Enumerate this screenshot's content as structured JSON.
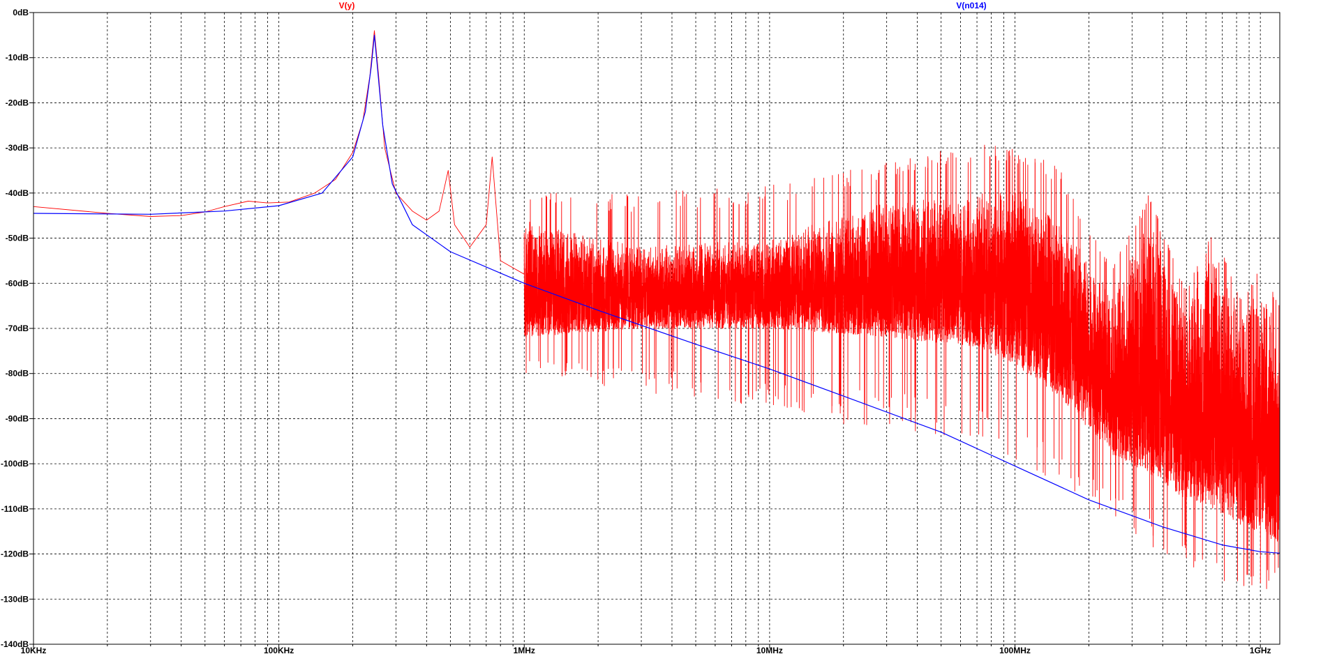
{
  "chart_data": {
    "type": "line",
    "x_scale": "log",
    "xlim_hz": [
      10000,
      1200000000
    ],
    "ylim_db": [
      -140,
      0
    ],
    "grid": true,
    "legend_position": "top",
    "x_tick_labels": [
      {
        "hz": 10000,
        "label": "10KHz"
      },
      {
        "hz": 100000,
        "label": "100KHz"
      },
      {
        "hz": 1000000,
        "label": "1MHz"
      },
      {
        "hz": 10000000,
        "label": "10MHz"
      },
      {
        "hz": 100000000,
        "label": "100MHz"
      },
      {
        "hz": 1000000000,
        "label": "1GHz"
      }
    ],
    "y_tick_labels": [
      {
        "db": 0,
        "label": "0dB"
      },
      {
        "db": -10,
        "label": "-10dB"
      },
      {
        "db": -20,
        "label": "-20dB"
      },
      {
        "db": -30,
        "label": "-30dB"
      },
      {
        "db": -40,
        "label": "-40dB"
      },
      {
        "db": -50,
        "label": "-50dB"
      },
      {
        "db": -60,
        "label": "-60dB"
      },
      {
        "db": -70,
        "label": "-70dB"
      },
      {
        "db": -80,
        "label": "-80dB"
      },
      {
        "db": -90,
        "label": "-90dB"
      },
      {
        "db": -100,
        "label": "-100dB"
      },
      {
        "db": -110,
        "label": "-110dB"
      },
      {
        "db": -120,
        "label": "-120dB"
      },
      {
        "db": -130,
        "label": "-130dB"
      },
      {
        "db": -140,
        "label": "-140dB"
      }
    ],
    "series": [
      {
        "name": "V(y)",
        "color": "#ff0000",
        "points": [
          [
            10000,
            -43
          ],
          [
            20000,
            -44.5
          ],
          [
            30000,
            -45.2
          ],
          [
            40000,
            -45
          ],
          [
            50000,
            -44.2
          ],
          [
            60000,
            -43
          ],
          [
            75000,
            -41.8
          ],
          [
            90000,
            -42.2
          ],
          [
            110000,
            -42
          ],
          [
            140000,
            -40
          ],
          [
            170000,
            -37
          ],
          [
            200000,
            -31
          ],
          [
            220000,
            -24
          ],
          [
            235000,
            -14
          ],
          [
            245000,
            -4
          ],
          [
            255000,
            -14
          ],
          [
            270000,
            -30
          ],
          [
            300000,
            -40
          ],
          [
            350000,
            -44
          ],
          [
            400000,
            -46
          ],
          [
            450000,
            -44
          ],
          [
            490000,
            -35
          ],
          [
            520000,
            -47
          ],
          [
            600000,
            -52
          ],
          [
            700000,
            -47
          ],
          [
            740000,
            -32
          ],
          [
            800000,
            -55
          ],
          [
            1000000,
            -58
          ]
        ],
        "noise_band": [
          {
            "hz": 1000000,
            "upper_db": -46,
            "lower_db": -72,
            "spike_top_db": -40,
            "spike_bottom_db": -80
          },
          {
            "hz": 3000000,
            "upper_db": -52,
            "lower_db": -70,
            "spike_top_db": -40,
            "spike_bottom_db": -84
          },
          {
            "hz": 10000000,
            "upper_db": -50,
            "lower_db": -70,
            "spike_top_db": -38,
            "spike_bottom_db": -90
          },
          {
            "hz": 30000000,
            "upper_db": -42,
            "lower_db": -72,
            "spike_top_db": -33,
            "spike_bottom_db": -92
          },
          {
            "hz": 70000000,
            "upper_db": -40,
            "lower_db": -74,
            "spike_top_db": -29,
            "spike_bottom_db": -95
          },
          {
            "hz": 100000000,
            "upper_db": -38,
            "lower_db": -78,
            "spike_top_db": -30,
            "spike_bottom_db": -100
          },
          {
            "hz": 150000000,
            "upper_db": -45,
            "lower_db": -85,
            "spike_top_db": -34,
            "spike_bottom_db": -104
          },
          {
            "hz": 250000000,
            "upper_db": -62,
            "lower_db": -98,
            "spike_top_db": -56,
            "spike_bottom_db": -112
          },
          {
            "hz": 350000000,
            "upper_db": -46,
            "lower_db": -102,
            "spike_top_db": -40,
            "spike_bottom_db": -118
          },
          {
            "hz": 500000000,
            "upper_db": -66,
            "lower_db": -108,
            "spike_top_db": -61,
            "spike_bottom_db": -122
          },
          {
            "hz": 650000000,
            "upper_db": -52,
            "lower_db": -110,
            "spike_top_db": -48,
            "spike_bottom_db": -126
          },
          {
            "hz": 850000000,
            "upper_db": -68,
            "lower_db": -114,
            "spike_top_db": -64,
            "spike_bottom_db": -130
          },
          {
            "hz": 1000000000,
            "upper_db": -59,
            "lower_db": -115,
            "spike_top_db": -56,
            "spike_bottom_db": -130
          },
          {
            "hz": 1200000000,
            "upper_db": -72,
            "lower_db": -118,
            "spike_top_db": -64,
            "spike_bottom_db": -124
          }
        ]
      },
      {
        "name": "V(n014)",
        "color": "#0000ff",
        "points": [
          [
            10000,
            -44.5
          ],
          [
            30000,
            -44.7
          ],
          [
            60000,
            -44
          ],
          [
            100000,
            -42.8
          ],
          [
            150000,
            -40
          ],
          [
            200000,
            -32
          ],
          [
            225000,
            -22
          ],
          [
            238000,
            -12
          ],
          [
            245000,
            -5
          ],
          [
            252000,
            -12
          ],
          [
            265000,
            -25
          ],
          [
            290000,
            -38
          ],
          [
            350000,
            -47
          ],
          [
            500000,
            -53
          ],
          [
            1000000,
            -60
          ],
          [
            2000000,
            -66
          ],
          [
            5000000,
            -73.5
          ],
          [
            10000000,
            -79
          ],
          [
            20000000,
            -85
          ],
          [
            50000000,
            -93
          ],
          [
            100000000,
            -100.5
          ],
          [
            200000000,
            -108
          ],
          [
            400000000,
            -114
          ],
          [
            700000000,
            -118
          ],
          [
            1000000000,
            -119.5
          ],
          [
            1200000000,
            -119.8
          ]
        ]
      }
    ]
  }
}
